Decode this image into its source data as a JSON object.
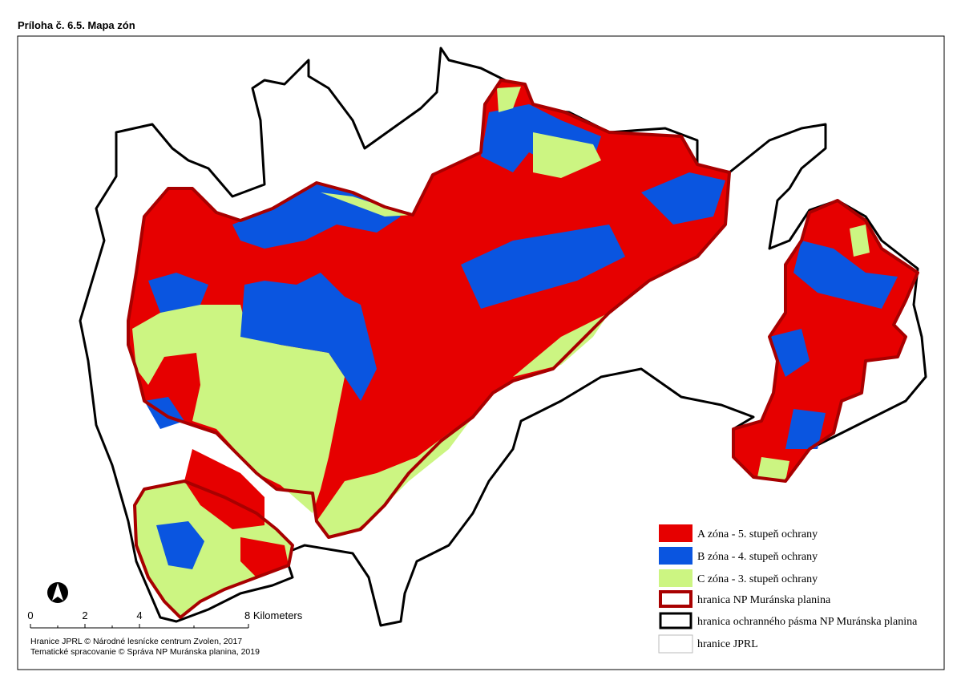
{
  "title": "Príloha č. 6.5. Mapa zón",
  "legend": [
    "A zóna - 5. stupeň ochrany",
    "B zóna - 4. stupeň ochrany",
    "C zóna - 3. stupeň ochrany",
    "hranica NP Muránska planina",
    "hranica ochranného pásma NP Muránska planina",
    "hranice JPRL"
  ],
  "scale_bar": [
    "0",
    "2",
    "4",
    "8 Kilometers"
  ],
  "credits": [
    "Hranice JPRL © Národné lesnícke centrum Zvolen, 2017",
    "Tematické spracovanie © Správa NP Muránska planina, 2019"
  ]
}
